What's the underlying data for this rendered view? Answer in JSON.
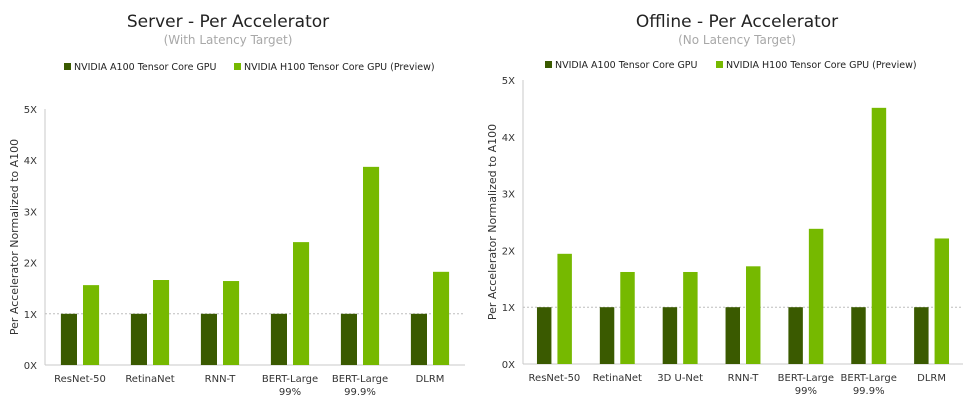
{
  "colors": {
    "a100": "#3a5a00",
    "h100": "#76b900",
    "axis": "#c8c8c8",
    "refline": "#bdbdbd"
  },
  "chart_data": [
    {
      "type": "bar",
      "title": "Server - Per Accelerator",
      "subtitle": "(With Latency Target)",
      "ylabel": "Per Accelerator Normalized to A100",
      "yticks": [
        "0X",
        "1X",
        "2X",
        "3X",
        "4X",
        "5X"
      ],
      "ylim": [
        0,
        5
      ],
      "legend_position": "top",
      "categories": [
        [
          "ResNet-50"
        ],
        [
          "RetinaNet"
        ],
        [
          "RNN-T"
        ],
        [
          "BERT-Large",
          "99%"
        ],
        [
          "BERT-Large",
          "99.9%"
        ],
        [
          "DLRM"
        ]
      ],
      "series": [
        {
          "name": "NVIDIA A100 Tensor Core GPU",
          "values": [
            1,
            1,
            1,
            1,
            1,
            1
          ]
        },
        {
          "name": "NVIDIA H100 Tensor Core GPU (Preview)",
          "values": [
            1.56,
            1.66,
            1.64,
            2.4,
            3.87,
            1.82
          ]
        }
      ]
    },
    {
      "type": "bar",
      "title": "Offline - Per Accelerator",
      "subtitle": "(No Latency Target)",
      "ylabel": "Per Accelerator Normalized to A100",
      "yticks": [
        "0X",
        "1X",
        "2X",
        "3X",
        "4X",
        "5X"
      ],
      "ylim": [
        0,
        5
      ],
      "legend_position": "top",
      "categories": [
        [
          "ResNet-50"
        ],
        [
          "RetinaNet"
        ],
        [
          "3D U-Net"
        ],
        [
          "RNN-T"
        ],
        [
          "BERT-Large",
          "99%"
        ],
        [
          "BERT-Large",
          "99.9%"
        ],
        [
          "DLRM"
        ]
      ],
      "series": [
        {
          "name": "NVIDIA A100 Tensor Core GPU",
          "values": [
            1,
            1,
            1,
            1,
            1,
            1,
            1
          ]
        },
        {
          "name": "NVIDIA H100 Tensor Core GPU (Preview)",
          "values": [
            1.94,
            1.62,
            1.62,
            1.72,
            2.38,
            4.51,
            2.21
          ]
        }
      ]
    }
  ]
}
